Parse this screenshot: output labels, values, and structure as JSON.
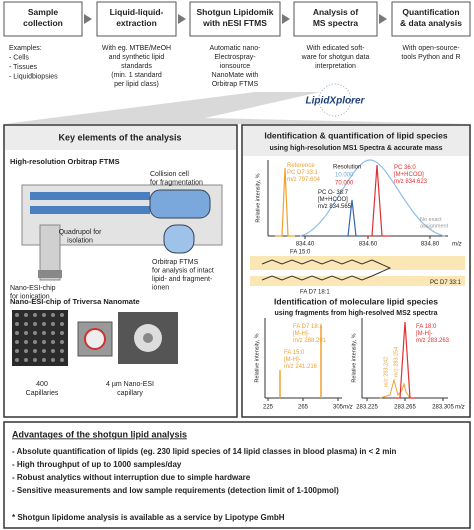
{
  "workflow": [
    {
      "title": [
        "Sample",
        "collection"
      ],
      "text": [
        "Examples:",
        "- Cells",
        "- Tissues",
        "- Liquidbiopsies"
      ]
    },
    {
      "title": [
        "Liquid-liquid-",
        "extraction"
      ],
      "text": [
        "With eg. MTBE/MeOH",
        "and synthetic lipid",
        "standards",
        "(min. 1 standard",
        "per lipid class)"
      ]
    },
    {
      "title": [
        "Shotgun Lipidomik",
        "with nESI FTMS"
      ],
      "text": [
        "Automatic nano-",
        "Electrospray-",
        "ionsource",
        "NanoMate with",
        "Orbitrap FTMS"
      ]
    },
    {
      "title": [
        "Analysis of",
        "MS spectra"
      ],
      "text": [
        "With edicated soft-",
        "ware for shotgun data",
        "interpretation"
      ]
    },
    {
      "title": [
        "Quantification",
        "& data analysis"
      ],
      "text": [
        "With open-source-",
        "tools Python and R"
      ]
    }
  ],
  "logo": "LipidXplorer",
  "left_panel": {
    "title": "Key elements of the analysis",
    "orbitrap_title": "High-resolution Orbitrap FTMS",
    "collision_cell": [
      "Collision cell",
      "for fragmentation"
    ],
    "quadrupol": [
      "Quadrupol for",
      "isolation"
    ],
    "orbitrap": [
      "Orbitrap FTMS",
      "for analysis of intact",
      "lipid- and fragment-",
      "ionen"
    ],
    "nano_esi": [
      "Nano-ESI-chip",
      "for ionication"
    ],
    "chip_title": "Nano-ESI-chip of Triversa Nanomate",
    "capillaries": [
      "400",
      "Capillaries"
    ],
    "capillary": [
      "4 µm Nano-ESI",
      "capillary"
    ]
  },
  "right_panel": {
    "title": "Identification & quantification of lipid species",
    "subtitle": "using high-resolution MS1 Spectra & accurate mass",
    "ms1": {
      "y_label": "Relative intensity, %",
      "reference": [
        "Reference",
        "PC D7 33:1",
        "m/z 797.604"
      ],
      "resolution": "Resolution",
      "res_low": "10.000",
      "res_high": "70.000",
      "pc_o": [
        "PC O- 38:7",
        "[M+HCOO]",
        "m/z 834.565"
      ],
      "pc_36": [
        "PC 36:0",
        "[M+HCOO]",
        "m/z 834.623"
      ],
      "no_assign": [
        "No exact",
        "assignment"
      ],
      "x_ticks": [
        "834.40",
        "834.60",
        "834.80"
      ],
      "x_label": "m/z"
    },
    "structure": {
      "fa15": "FA 15:0",
      "fa18": "FA D7 18:1",
      "pc": [
        "PC D7 33:1"
      ]
    },
    "title2": "Identification of moleculare lipid species",
    "subtitle2": "using fragments from high-resolved MS2 spectra",
    "ms2": {
      "y_label": "Relative intensity, %",
      "fa18d7": [
        "FA D7 18:1",
        "[M-H]-",
        "m/z 288.291"
      ],
      "fa15": [
        "FA 15:0",
        "[M-H]-",
        "m/z 241.216"
      ],
      "fa18": [
        "FA 18:0",
        "[M-H]-",
        "m/z 283.263"
      ],
      "peak_a": "m/z 283.242",
      "peak_b": "m/z 283.254",
      "x_ticks_left": [
        "225",
        "265",
        "305"
      ],
      "x_ticks_right": [
        "283.225",
        "283.265",
        "283.305"
      ],
      "x_label": "m/z"
    }
  },
  "advantages": {
    "title": "Advantages of the shotgun lipid analysis",
    "items": [
      "- Absolute quantification of lipids (eg. 230 lipid species of 14 lipid classes in blood plasma) in < 2 min",
      "- High throughput of up to 1000 samples/day",
      "- Robust analytics without interruption due to simple hardware",
      "- Sensitive measurements and low sample requirements (detection limit of 1-100pmol)"
    ],
    "footnote": "* Shotgun lipidome analysis is available as a service by Lipotype GmbH"
  }
}
